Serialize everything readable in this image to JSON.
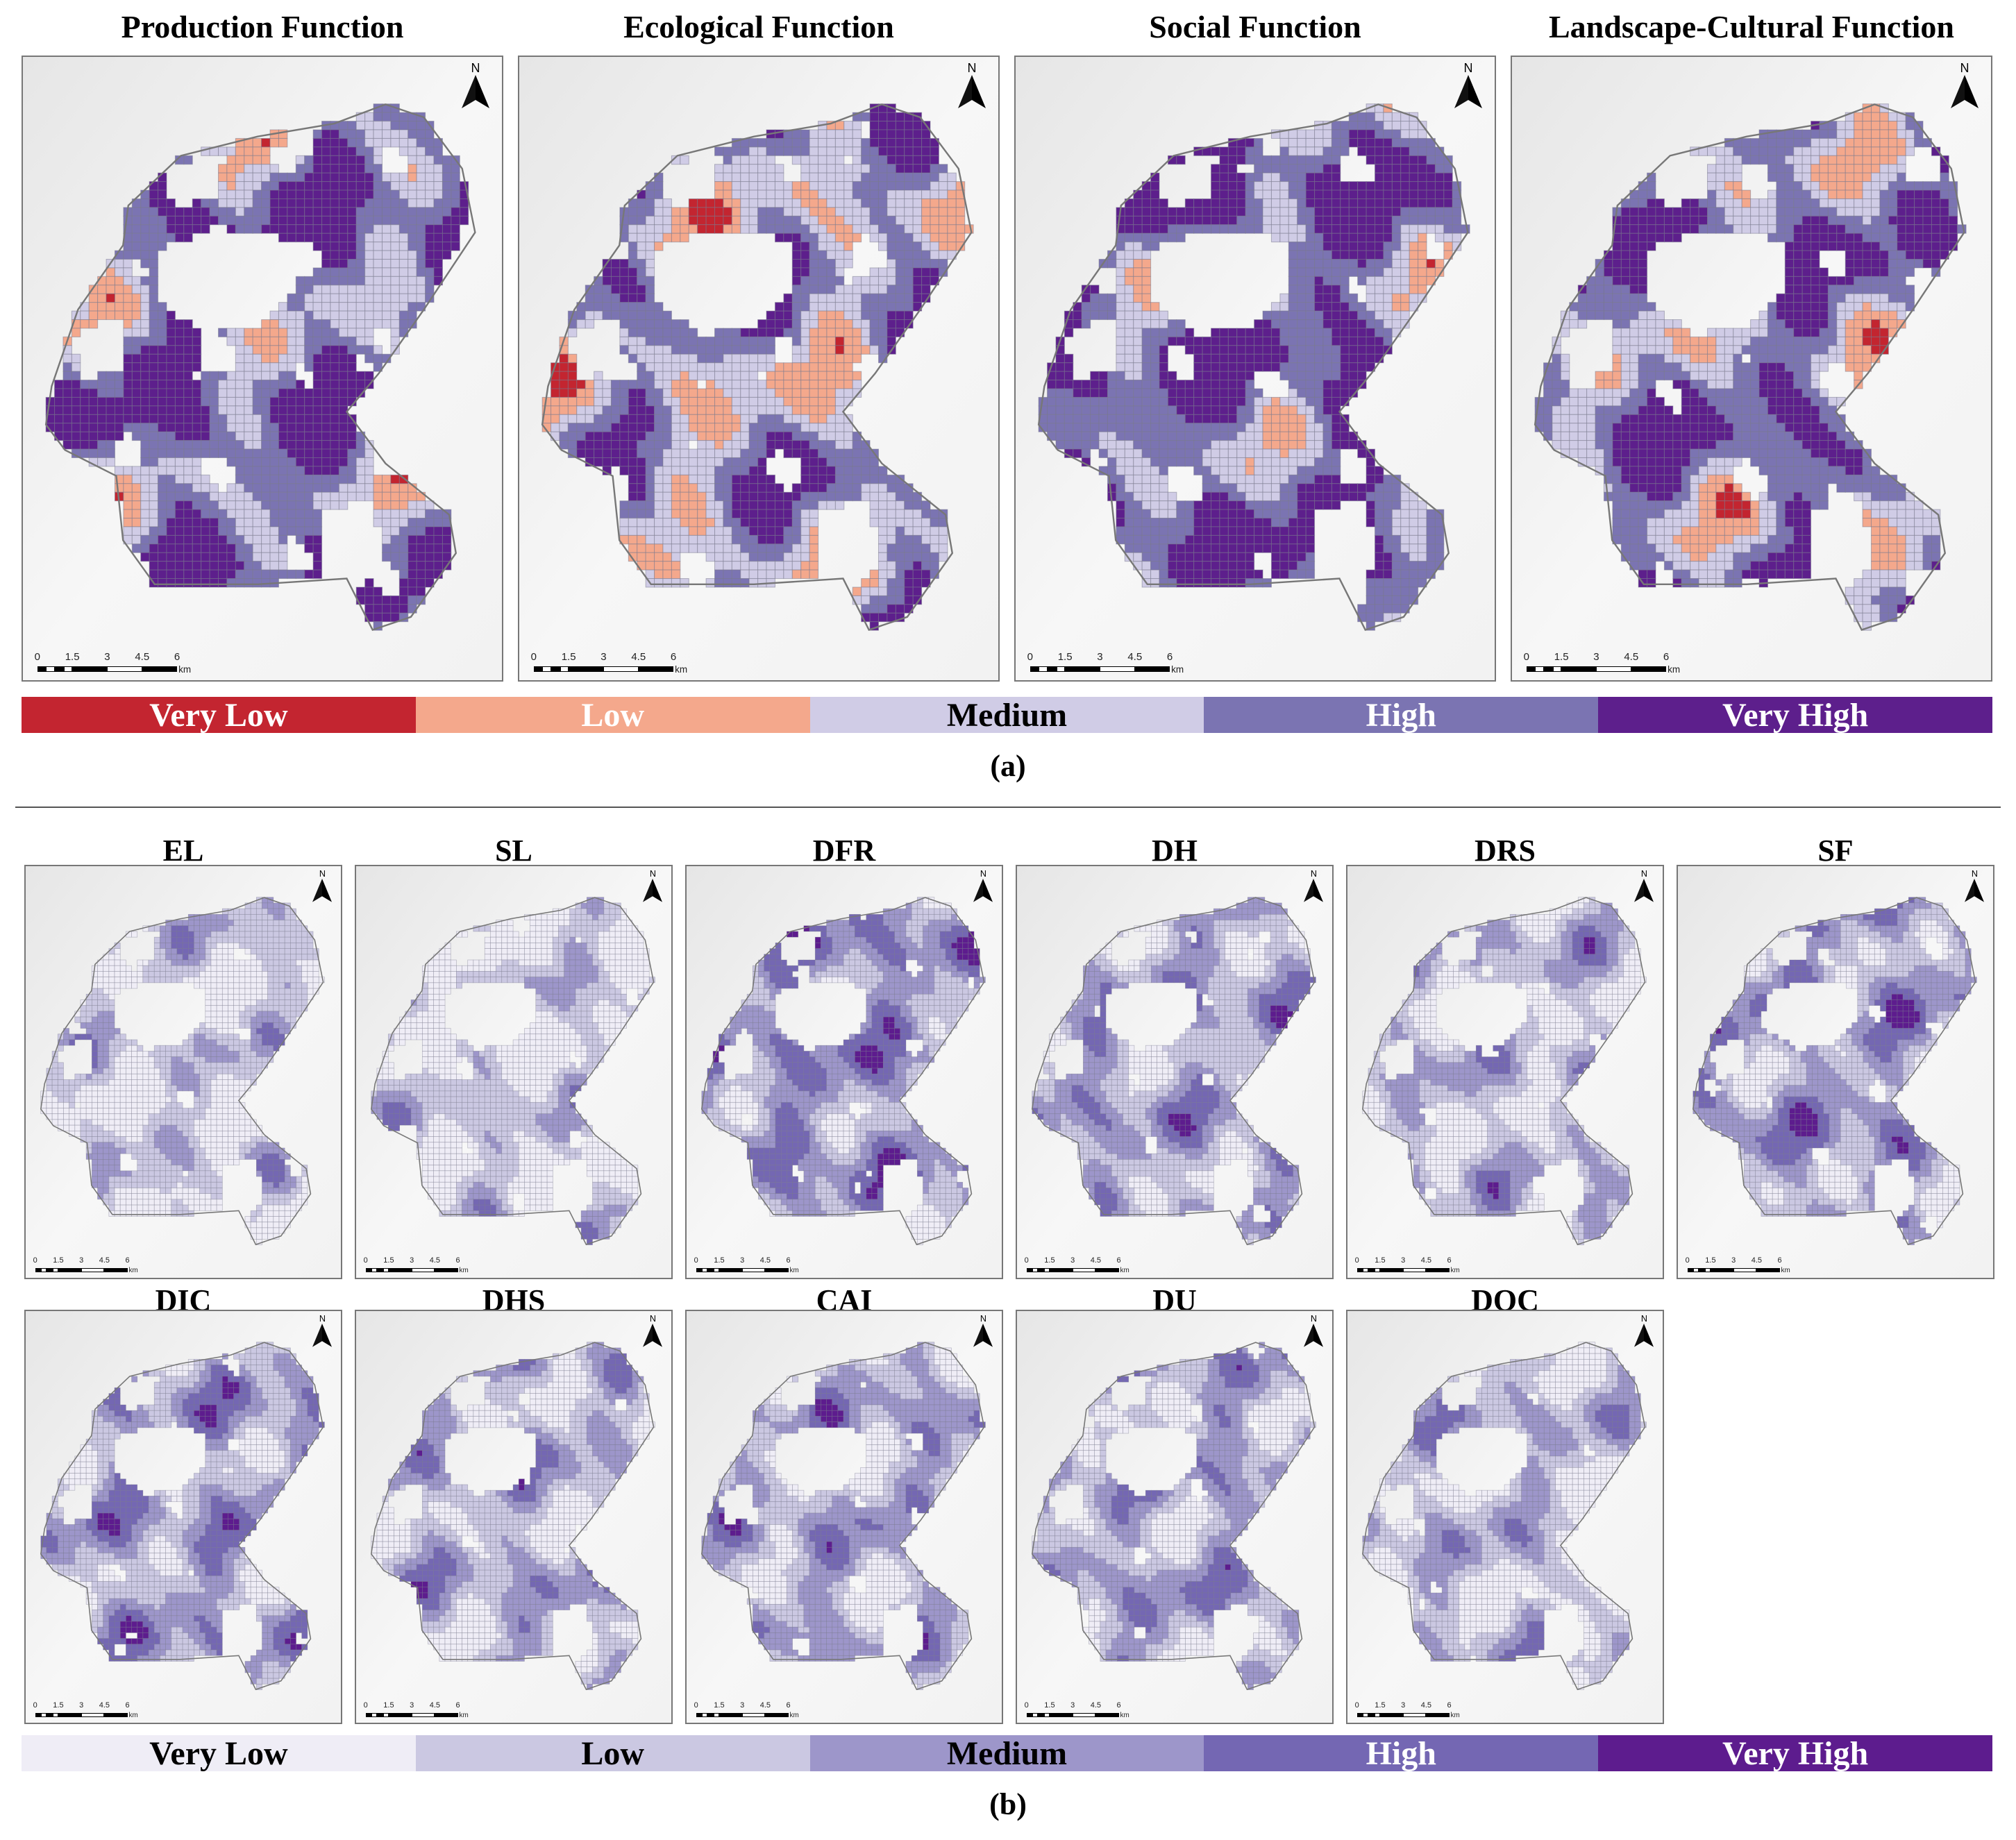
{
  "part_a": {
    "titles": [
      "Production Function",
      "Ecological Function",
      "Social Function",
      "Landscape-Cultural Function"
    ],
    "legend": [
      {
        "label": "Very Low",
        "color": "#c32530",
        "text_color": "#ffffff"
      },
      {
        "label": "Low",
        "color": "#f4a88c",
        "text_color": "#ffffff"
      },
      {
        "label": "Medium",
        "color": "#d0cce6",
        "text_color": "#000000"
      },
      {
        "label": "High",
        "color": "#7b74b2",
        "text_color": "#ffffff"
      },
      {
        "label": "Very High",
        "color": "#5d1f8c",
        "text_color": "#ffffff"
      }
    ],
    "caption": "(a)"
  },
  "part_b": {
    "titles": [
      "EL",
      "SL",
      "DFR",
      "DH",
      "DRS",
      "SF",
      "DIC",
      "DHS",
      "CAI",
      "DU",
      "DOC"
    ],
    "legend": [
      {
        "label": "Very Low",
        "color": "#efedf6",
        "text_color": "#000000"
      },
      {
        "label": "Low",
        "color": "#cbc8e2",
        "text_color": "#000000"
      },
      {
        "label": "Medium",
        "color": "#9d96ca",
        "text_color": "#000000"
      },
      {
        "label": "High",
        "color": "#7467b3",
        "text_color": "#ffffff"
      },
      {
        "label": "Very High",
        "color": "#5d1c8e",
        "text_color": "#ffffff"
      }
    ],
    "caption": "(b)"
  },
  "map_common": {
    "north_label": "N",
    "scale_ticks": [
      "0",
      "1.5",
      "3",
      "4.5",
      "6"
    ],
    "scale_unit": "km"
  }
}
